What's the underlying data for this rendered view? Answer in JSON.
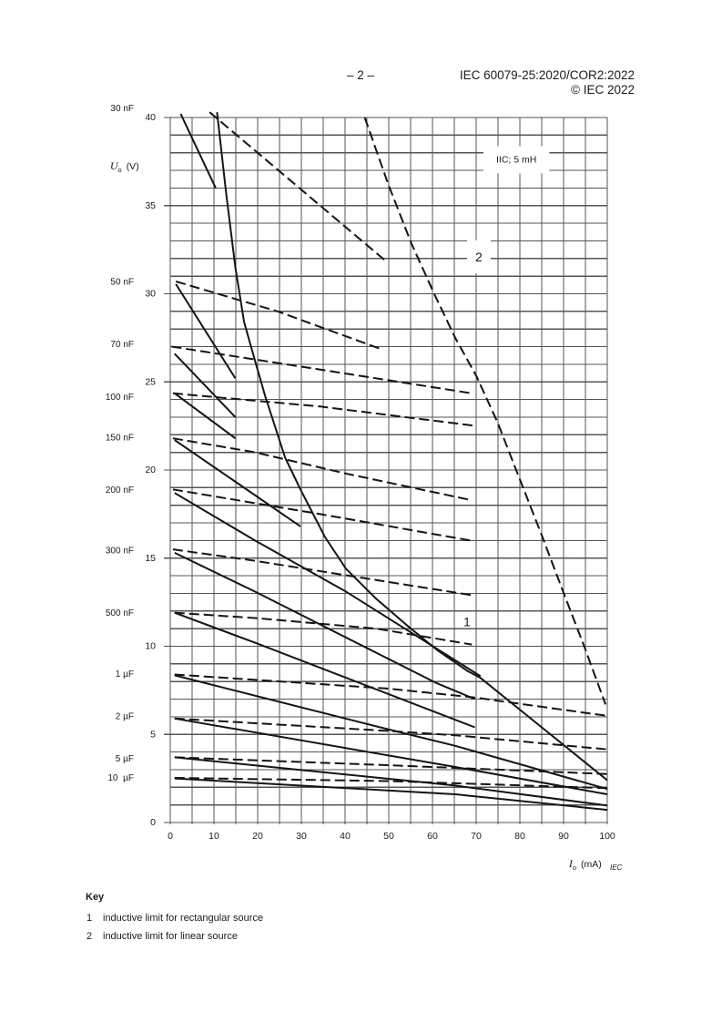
{
  "header": {
    "page_number": "– 2 –",
    "document_id": "IEC 60079-25:2020/COR2:2022",
    "copyright": "© IEC 2022"
  },
  "figure": {
    "source_mark": "IEC"
  },
  "key": {
    "title": "Key",
    "items": [
      {
        "number": "1",
        "text": "inductive limit for rectangular source"
      },
      {
        "number": "2",
        "text": "inductive limit for linear source"
      }
    ]
  },
  "colors": {
    "grid": "#555555",
    "curve": "#141414",
    "background": "#ffffff"
  },
  "chart_data": {
    "type": "line",
    "title": "IIC; 5 mH",
    "xlabel": "Io (mA)",
    "ylabel": "Uo (V)",
    "xlabel_symbol": "I",
    "xlabel_subscript": "o",
    "xlabel_unit": "(mA)",
    "ylabel_symbol": "U",
    "ylabel_subscript": "o",
    "ylabel_unit": "(V)",
    "xlim": [
      0,
      100
    ],
    "ylim": [
      0,
      40
    ],
    "xticks": [
      0,
      10,
      20,
      30,
      40,
      50,
      60,
      70,
      80,
      90,
      100
    ],
    "yticks": [
      0,
      5,
      10,
      15,
      20,
      25,
      30,
      35,
      40
    ],
    "grid": {
      "on": true,
      "x_step": 5,
      "y_step": 1
    },
    "legend_position": "none",
    "annotations": [
      {
        "text": "IIC; 5 mH",
        "x": 79.2,
        "y": 37.6,
        "boxed": true
      },
      {
        "text": "2",
        "x": 70.6,
        "y": 32.1,
        "boxed": true
      },
      {
        "text": "1",
        "x": 67.9,
        "y": 11.4,
        "boxed": false
      }
    ],
    "capacitance_labels": [
      {
        "text": "30 nF",
        "y": 40.5
      },
      {
        "text": "50 nF",
        "y": 30.65
      },
      {
        "text": "70 nF",
        "y": 27.1
      },
      {
        "text": "100 nF",
        "y": 24.1
      },
      {
        "text": "150 nF",
        "y": 21.8
      },
      {
        "text": "200 nF",
        "y": 18.85
      },
      {
        "text": "300 nF",
        "y": 15.4
      },
      {
        "text": "500 nF",
        "y": 11.85
      },
      {
        "text": "1 µF",
        "y": 8.4
      },
      {
        "text": "2 µF",
        "y": 6.0
      },
      {
        "text": "5 µF",
        "y": 3.6
      },
      {
        "text": "10  µF",
        "y": 2.5
      }
    ],
    "series": [
      {
        "name": "30 nF",
        "style": "solid",
        "points": [
          [
            2.4,
            40.2
          ],
          [
            10.4,
            36.0
          ]
        ]
      },
      {
        "name": "30 nF",
        "style": "dashed",
        "points": [
          [
            9.0,
            40.3
          ],
          [
            49.6,
            31.8
          ]
        ]
      },
      {
        "name": "50 nF",
        "style": "solid",
        "points": [
          [
            1.3,
            30.55
          ],
          [
            14.9,
            25.2
          ]
        ]
      },
      {
        "name": "50 nF",
        "style": "dashed",
        "points": [
          [
            1.3,
            30.7
          ],
          [
            24.6,
            29.0
          ],
          [
            47.8,
            26.9
          ]
        ]
      },
      {
        "name": "70 nF",
        "style": "solid",
        "points": [
          [
            1.0,
            26.6
          ],
          [
            14.9,
            23.0
          ]
        ]
      },
      {
        "name": "70 nF",
        "style": "dashed",
        "points": [
          [
            0.3,
            27.0
          ],
          [
            34.3,
            25.7
          ],
          [
            69.0,
            24.35
          ]
        ]
      },
      {
        "name": "100 nF",
        "style": "solid",
        "points": [
          [
            1.0,
            24.35
          ],
          [
            14.9,
            21.8
          ]
        ]
      },
      {
        "name": "100 nF",
        "style": "dashed",
        "points": [
          [
            0.6,
            24.35
          ],
          [
            34.3,
            23.6
          ],
          [
            70.0,
            22.5
          ]
        ]
      },
      {
        "name": "150 nF",
        "style": "solid",
        "points": [
          [
            1.0,
            21.7
          ],
          [
            29.8,
            16.8
          ]
        ]
      },
      {
        "name": "150 nF",
        "style": "dashed",
        "points": [
          [
            0.6,
            21.8
          ],
          [
            19.4,
            21.0
          ],
          [
            40.2,
            19.8
          ],
          [
            68.7,
            18.3
          ]
        ]
      },
      {
        "name": "200 nF",
        "style": "solid",
        "points": [
          [
            1.0,
            18.7
          ],
          [
            19.4,
            16.0
          ],
          [
            40.2,
            13.1
          ],
          [
            71.0,
            8.3
          ]
        ]
      },
      {
        "name": "200 nF",
        "style": "dashed",
        "points": [
          [
            0.6,
            18.9
          ],
          [
            34.3,
            17.5
          ],
          [
            68.7,
            16.0
          ]
        ]
      },
      {
        "name": "300 nF",
        "style": "solid",
        "points": [
          [
            1.0,
            15.3
          ],
          [
            19.4,
            13.1
          ],
          [
            61.0,
            7.9
          ],
          [
            69.7,
            7.0
          ]
        ]
      },
      {
        "name": "300 nF",
        "style": "dashed",
        "points": [
          [
            0.6,
            15.5
          ],
          [
            19.4,
            14.85
          ],
          [
            69.0,
            12.9
          ]
        ]
      },
      {
        "name": "500 nF",
        "style": "solid",
        "points": [
          [
            1.0,
            11.9
          ],
          [
            19.4,
            10.2
          ],
          [
            69.7,
            5.4
          ]
        ]
      },
      {
        "name": "500 nF",
        "style": "dashed",
        "points": [
          [
            1.0,
            11.9
          ],
          [
            19.4,
            11.6
          ],
          [
            47.1,
            11.0
          ],
          [
            69.0,
            10.1
          ]
        ]
      },
      {
        "name": "1 µF",
        "style": "solid",
        "points": [
          [
            1.0,
            8.35
          ],
          [
            49.6,
            5.3
          ],
          [
            65.2,
            4.35
          ],
          [
            100,
            1.9
          ]
        ]
      },
      {
        "name": "1 µF",
        "style": "dashed",
        "points": [
          [
            1.0,
            8.4
          ],
          [
            49.6,
            7.6
          ],
          [
            69.4,
            7.1
          ],
          [
            100,
            6.05
          ]
        ]
      },
      {
        "name": "2 µF",
        "style": "solid",
        "points": [
          [
            1.0,
            5.9
          ],
          [
            65.2,
            3.15
          ],
          [
            100,
            1.6
          ]
        ]
      },
      {
        "name": "2 µF",
        "style": "dashed",
        "points": [
          [
            1.0,
            5.9
          ],
          [
            49.6,
            5.2
          ],
          [
            65.2,
            4.95
          ],
          [
            100,
            4.15
          ]
        ]
      },
      {
        "name": "5 µF",
        "style": "solid",
        "points": [
          [
            1.0,
            3.7
          ],
          [
            65.2,
            2.1
          ],
          [
            100,
            0.96
          ]
        ]
      },
      {
        "name": "5 µF",
        "style": "dashed",
        "points": [
          [
            1.0,
            3.7
          ],
          [
            50.0,
            3.25
          ],
          [
            100,
            2.75
          ]
        ]
      },
      {
        "name": "10 µF",
        "style": "solid",
        "points": [
          [
            1.0,
            2.5
          ],
          [
            65.2,
            1.6
          ],
          [
            100,
            0.72
          ]
        ]
      },
      {
        "name": "10 µF",
        "style": "dashed",
        "points": [
          [
            1.0,
            2.53
          ],
          [
            50.0,
            2.35
          ],
          [
            100,
            1.95
          ]
        ]
      },
      {
        "name": "1",
        "label": "inductive limit for rectangular source",
        "style": "solid",
        "points": [
          [
            10.7,
            40.3
          ],
          [
            12.8,
            35.7
          ],
          [
            14.9,
            31.5
          ],
          [
            16.9,
            28.4
          ],
          [
            19.4,
            26.2
          ],
          [
            21.7,
            24.2
          ],
          [
            26.3,
            20.7
          ],
          [
            29.8,
            18.9
          ],
          [
            35.4,
            16.2
          ],
          [
            40.2,
            14.4
          ],
          [
            47.1,
            12.7
          ],
          [
            54.1,
            11.2
          ],
          [
            61.0,
            9.8
          ],
          [
            68.0,
            8.6
          ],
          [
            71.0,
            8.2
          ],
          [
            85.0,
            5.4
          ],
          [
            100,
            2.4
          ]
        ]
      },
      {
        "name": "2",
        "label": "inductive limit for linear source",
        "style": "dashed",
        "points": [
          [
            44.5,
            40.0
          ],
          [
            49.9,
            36.2
          ],
          [
            55.1,
            32.9
          ],
          [
            60.4,
            30.0
          ],
          [
            65.2,
            27.5
          ],
          [
            70.1,
            25.3
          ],
          [
            74.9,
            22.7
          ],
          [
            80.1,
            19.4
          ],
          [
            85.0,
            16.3
          ],
          [
            89.9,
            13.1
          ],
          [
            94.7,
            10.0
          ],
          [
            99.6,
            6.7
          ]
        ]
      }
    ]
  }
}
